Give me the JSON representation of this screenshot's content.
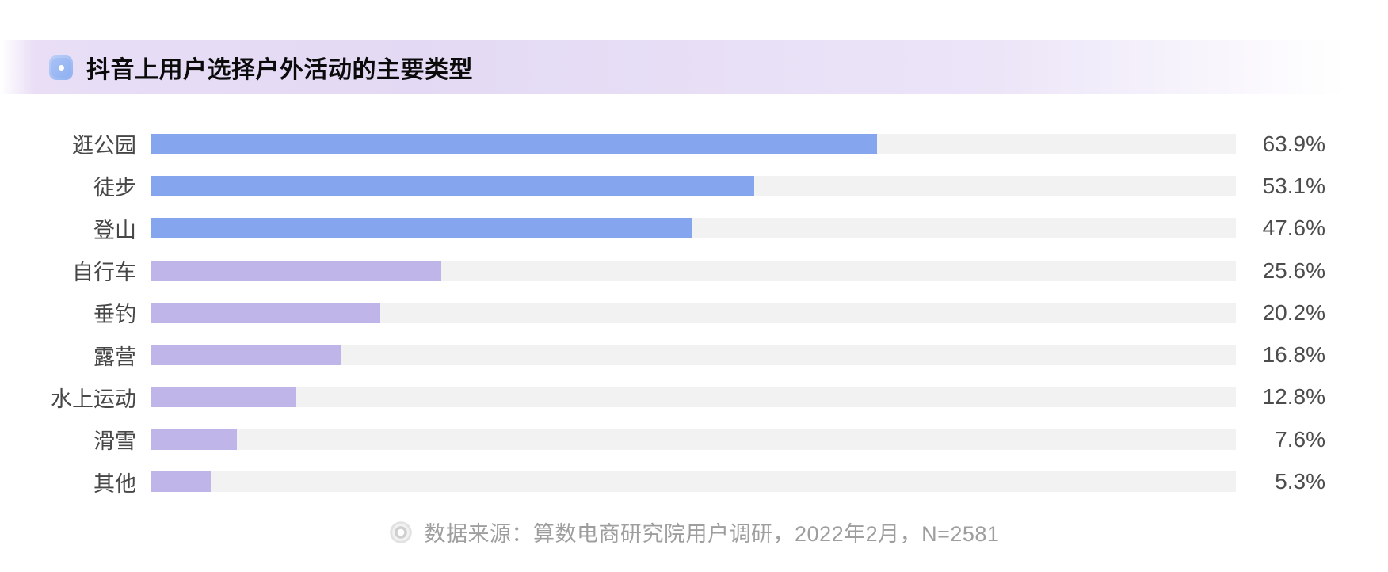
{
  "header": {
    "title": "抖音上用户选择户外活动的主要类型"
  },
  "chart_data": {
    "type": "bar",
    "orientation": "horizontal",
    "title": "抖音上用户选择户外活动的主要类型",
    "categories": [
      "逛公园",
      "徒步",
      "登山",
      "自行车",
      "垂钓",
      "露营",
      "水上运动",
      "滑雪",
      "其他"
    ],
    "values": [
      63.9,
      53.1,
      47.6,
      25.6,
      20.2,
      16.8,
      12.8,
      7.6,
      5.3
    ],
    "value_labels": [
      "63.9%",
      "53.1%",
      "47.6%",
      "25.6%",
      "20.2%",
      "16.8%",
      "12.8%",
      "7.6%",
      "5.3%"
    ],
    "bar_colors": [
      "#85a6ef",
      "#85a6ef",
      "#85a6ef",
      "#bfb5e8",
      "#bfb5e8",
      "#bfb5e8",
      "#bfb5e8",
      "#bfb5e8",
      "#bfb5e8"
    ],
    "track_color": "#f2f2f3",
    "xlim": [
      0,
      95.5
    ],
    "grid": false,
    "legend": null,
    "value_label_position": "right-outside",
    "category_label_position": "left"
  },
  "footer": {
    "source_text": "数据来源：算数电商研究院用户调研，2022年2月，N=2581"
  },
  "colors": {
    "accent_blue": "#85a6ef",
    "accent_purple": "#bfb5e8",
    "band_lavender": "#e3d9f4",
    "track_gray": "#f2f2f3",
    "text_dark": "#474747",
    "text_muted": "#9e9e9e"
  }
}
